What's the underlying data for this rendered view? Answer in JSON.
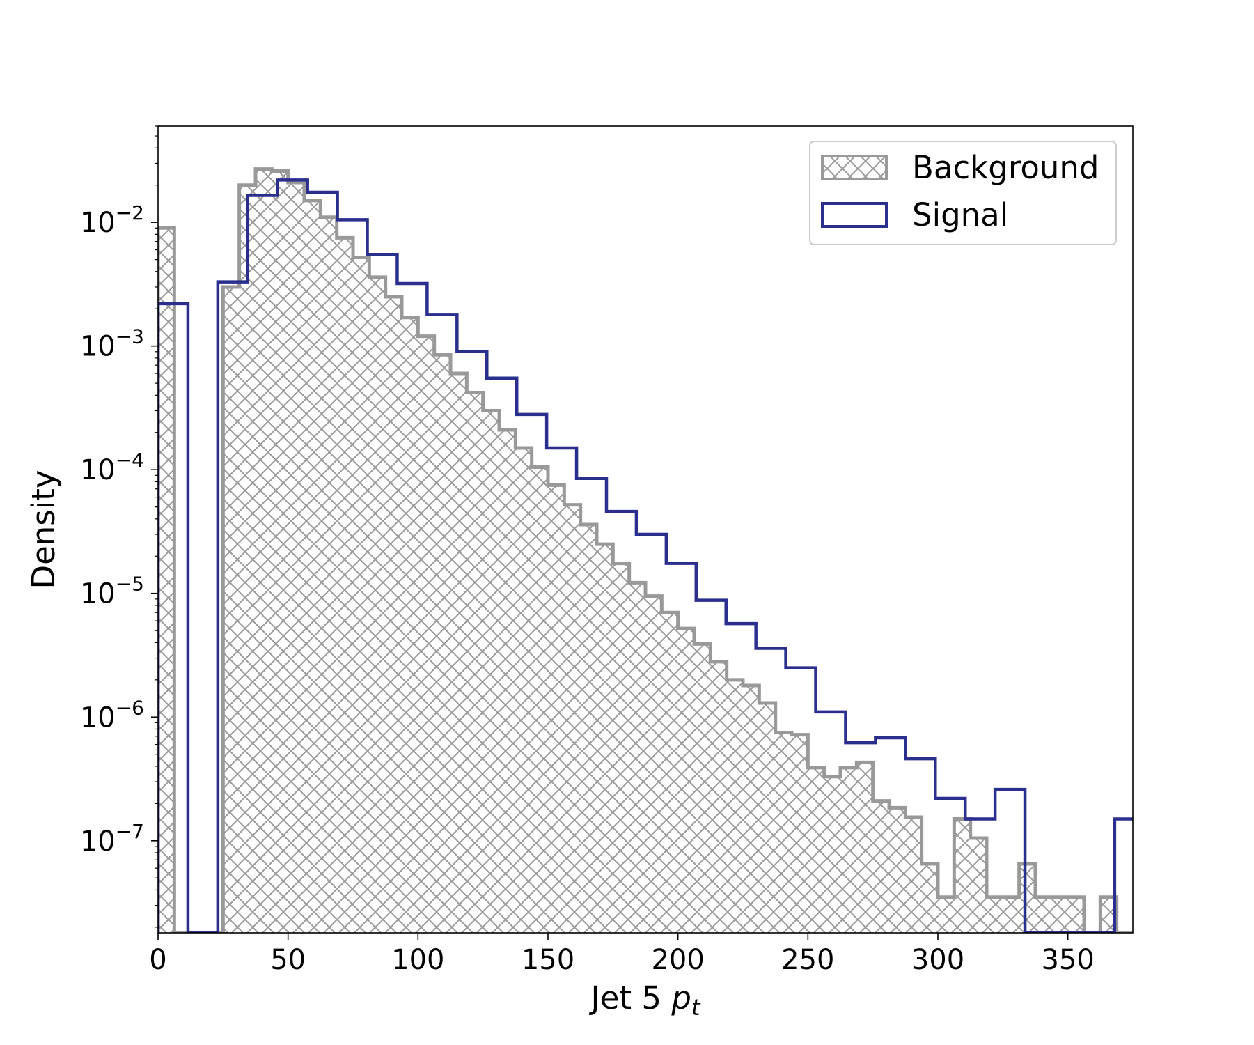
{
  "chart_data": {
    "type": "histogram",
    "xlabel": "Jet 5 ",
    "xlabel_math": "p",
    "xlabel_sub": "t",
    "ylabel": "Density",
    "xlim": [
      0,
      375
    ],
    "ylim": [
      1.8e-08,
      0.06
    ],
    "yscale": "log",
    "grid": false,
    "legend_position": "top-right",
    "x_ticks": [
      0,
      50,
      100,
      150,
      200,
      250,
      300,
      350
    ],
    "y_ticks": [
      {
        "value": 0.01,
        "exp": "−2"
      },
      {
        "value": 0.001,
        "exp": "−3"
      },
      {
        "value": 0.0001,
        "exp": "−4"
      },
      {
        "value": 1e-05,
        "exp": "−5"
      },
      {
        "value": 1e-06,
        "exp": "−6"
      },
      {
        "value": 1e-07,
        "exp": "−7"
      }
    ],
    "colors": {
      "background_edge": "#999999",
      "background_hatch": "#999999",
      "signal_edge": "#2a2e8c"
    },
    "series": [
      {
        "name": "Background",
        "style": "hatched-filled-step",
        "edges": [
          0,
          6.25,
          12.5,
          18.75,
          25,
          31.25,
          37.5,
          43.75,
          50,
          56.25,
          62.5,
          68.75,
          75,
          81.25,
          87.5,
          93.75,
          100,
          106.25,
          112.5,
          118.75,
          125,
          131.25,
          137.5,
          143.75,
          150,
          156.25,
          162.5,
          168.75,
          175,
          181.25,
          187.5,
          193.75,
          200,
          206.25,
          212.5,
          218.75,
          225,
          231.25,
          237.5,
          243.75,
          250,
          256.25,
          262.5,
          268.75,
          275,
          281.25,
          287.5,
          293.75,
          300,
          306.25,
          312.5,
          318.75,
          325,
          331.25,
          337.5,
          343.75,
          350,
          356.25,
          362.5,
          368.75,
          375
        ],
        "values": [
          0.009,
          0,
          0,
          0,
          0.003,
          0.02,
          0.027,
          0.026,
          0.021,
          0.015,
          0.011,
          0.0075,
          0.0052,
          0.0036,
          0.0025,
          0.0017,
          0.0012,
          0.00085,
          0.0006,
          0.00042,
          0.0003,
          0.00021,
          0.00015,
          0.000105,
          7.5e-05,
          5.2e-05,
          3.6e-05,
          2.5e-05,
          1.75e-05,
          1.22e-05,
          9.5e-06,
          7e-06,
          5.2e-06,
          3.9e-06,
          2.8e-06,
          2e-06,
          1.8e-06,
          1.3e-06,
          7.5e-07,
          7.2e-07,
          3.9e-07,
          3.3e-07,
          3.9e-07,
          4.3e-07,
          2.1e-07,
          1.85e-07,
          1.55e-07,
          6.5e-08,
          3.5e-08,
          1.5e-07,
          1.05e-07,
          3.5e-08,
          3.5e-08,
          6.5e-08,
          3.5e-08,
          3.5e-08,
          3.5e-08,
          0,
          3.5e-08,
          0
        ]
      },
      {
        "name": "Signal",
        "style": "step-outline",
        "edges": [
          0,
          11.5,
          23,
          34.5,
          46,
          57.5,
          69,
          80.5,
          92,
          103.5,
          115,
          126.5,
          138,
          149.5,
          161,
          172.5,
          184,
          195.5,
          207,
          218.5,
          230,
          241.5,
          253,
          264.5,
          276,
          287.5,
          299,
          310.5,
          322,
          333.5,
          345,
          356.5,
          368,
          379.5
        ],
        "values": [
          0.0022,
          0,
          0.0033,
          0.0165,
          0.022,
          0.0175,
          0.0105,
          0.0055,
          0.0032,
          0.0018,
          0.0009,
          0.00055,
          0.00028,
          0.00015,
          8.5e-05,
          4.6e-05,
          3e-05,
          1.75e-05,
          8.8e-06,
          5.7e-06,
          3.6e-06,
          2.5e-06,
          1.1e-06,
          6.2e-07,
          6.8e-07,
          4.6e-07,
          2.2e-07,
          1.5e-07,
          2.6e-07,
          0,
          0,
          0,
          1.5e-07
        ]
      }
    ]
  }
}
